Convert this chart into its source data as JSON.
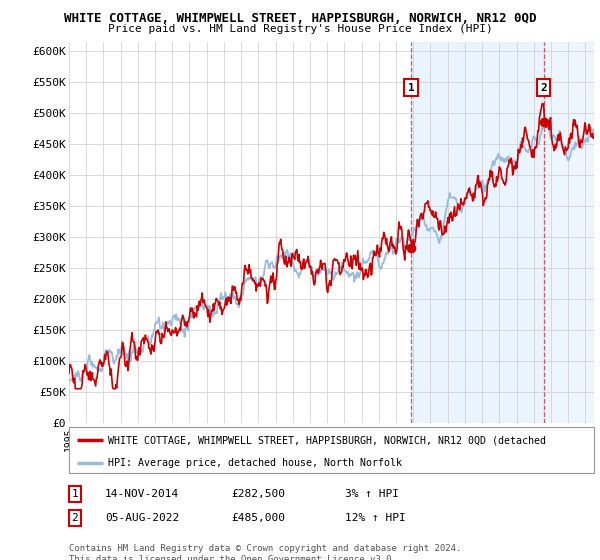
{
  "title": "WHITE COTTAGE, WHIMPWELL STREET, HAPPISBURGH, NORWICH, NR12 0QD",
  "subtitle": "Price paid vs. HM Land Registry's House Price Index (HPI)",
  "ylabel_ticks": [
    "£0",
    "£50K",
    "£100K",
    "£150K",
    "£200K",
    "£250K",
    "£300K",
    "£350K",
    "£400K",
    "£450K",
    "£500K",
    "£550K",
    "£600K"
  ],
  "ytick_values": [
    0,
    50000,
    100000,
    150000,
    200000,
    250000,
    300000,
    350000,
    400000,
    450000,
    500000,
    550000,
    600000
  ],
  "ylim": [
    0,
    615000
  ],
  "sale1_date_x": 2014.87,
  "sale1_price": 282500,
  "sale1_label": "1",
  "sale2_date_x": 2022.58,
  "sale2_price": 485000,
  "sale2_label": "2",
  "red_color": "#cc0000",
  "blue_color": "#99bbdd",
  "shade_color": "#ddeeff",
  "vline_color": "#cc3333",
  "legend_red_label": "WHITE COTTAGE, WHIMPWELL STREET, HAPPISBURGH, NORWICH, NR12 0QD (detached",
  "legend_blue_label": "HPI: Average price, detached house, North Norfolk",
  "annotation1_date": "14-NOV-2014",
  "annotation1_price": "£282,500",
  "annotation1_pct": "3% ↑ HPI",
  "annotation2_date": "05-AUG-2022",
  "annotation2_price": "£485,000",
  "annotation2_pct": "12% ↑ HPI",
  "footer": "Contains HM Land Registry data © Crown copyright and database right 2024.\nThis data is licensed under the Open Government Licence v3.0.",
  "bg_color": "#ffffff",
  "grid_color": "#cccccc",
  "xmin": 1995,
  "xmax": 2025.5
}
